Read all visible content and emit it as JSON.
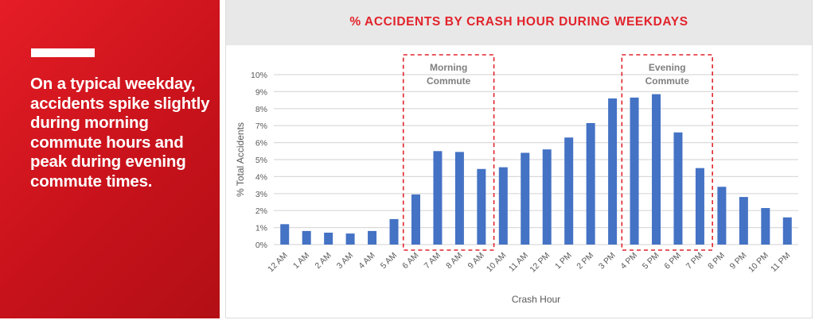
{
  "sidebar": {
    "message": "On a typical weekday, accidents spike slightly during morning commute hours and peak during evening commute times."
  },
  "colors": {
    "brand_red": "#e2232b",
    "bar_blue": "#4472c4",
    "grid": "#d9d9d9",
    "highlight_box": "#e2232b"
  },
  "chart_data": {
    "type": "bar",
    "title": "% ACCIDENTS BY CRASH HOUR DURING WEEKDAYS",
    "xlabel": "Crash Hour",
    "ylabel": "% Total Accidents",
    "ylim": [
      0,
      10
    ],
    "yticks": [
      "0%",
      "1%",
      "2%",
      "3%",
      "4%",
      "5%",
      "6%",
      "7%",
      "8%",
      "9%",
      "10%"
    ],
    "grid": true,
    "legend": null,
    "categories": [
      "12 AM",
      "1 AM",
      "2 AM",
      "3 AM",
      "4 AM",
      "5 AM",
      "6 AM",
      "7 AM",
      "8 AM",
      "9 AM",
      "10 AM",
      "11 AM",
      "12 PM",
      "1 PM",
      "2 PM",
      "3 PM",
      "4 PM",
      "5 PM",
      "6 PM",
      "7 PM",
      "8 PM",
      "9 PM",
      "10 PM",
      "11 PM"
    ],
    "values": [
      1.2,
      0.8,
      0.7,
      0.65,
      0.8,
      1.5,
      2.95,
      5.5,
      5.45,
      4.45,
      4.55,
      5.4,
      5.6,
      6.3,
      7.15,
      8.6,
      8.65,
      8.85,
      6.6,
      4.5,
      3.4,
      2.8,
      2.15,
      1.6
    ],
    "annotations": [
      {
        "label_lines": [
          "Morning",
          "Commute"
        ],
        "start": "6 AM",
        "end": "9 AM"
      },
      {
        "label_lines": [
          "Evening",
          "Commute"
        ],
        "start": "4 PM",
        "end": "7 PM"
      }
    ]
  }
}
